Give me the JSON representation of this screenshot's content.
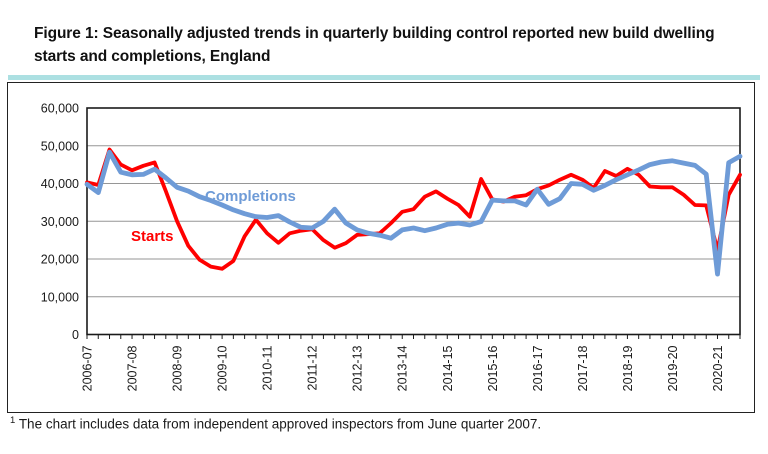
{
  "title": {
    "text": "Figure 1: Seasonally adjusted trends in quarterly building control reported new build dwelling starts and completions, England"
  },
  "footnote": {
    "marker": "1",
    "text": "The chart includes data from independent approved inspectors from June quarter 2007."
  },
  "colors": {
    "starts_line": "#FF0000",
    "completions_line": "#6E9BD7",
    "title_rule": "#ACE0E2",
    "gridline": "#969696",
    "axis": "#1A1A1A"
  },
  "chart_data": {
    "type": "line",
    "title": "",
    "xlabel": "",
    "ylabel": "",
    "grid": "horizontal",
    "legend_position": "inline-annotations",
    "x_axis": {
      "year_labels": [
        "2006-07",
        "2007-08",
        "2008-09",
        "2009-10",
        "2010-11",
        "2011-12",
        "2012-13",
        "2013-14",
        "2014-15",
        "2015-16",
        "2016-17",
        "2017-18",
        "2018-19",
        "2019-20",
        "2020-21"
      ],
      "quarters_per_year": 4,
      "total_points": 59
    },
    "y_axis": {
      "min": 0,
      "max": 60000,
      "tick_step": 10000,
      "tick_labels": [
        "0",
        "10,000",
        "20,000",
        "30,000",
        "40,000",
        "50,000",
        "60,000"
      ]
    },
    "series": [
      {
        "name": "Starts",
        "color": "#FF0000",
        "values": [
          40300,
          39600,
          49000,
          45000,
          43500,
          44700,
          45600,
          38000,
          30000,
          23500,
          19800,
          18000,
          17400,
          19500,
          26000,
          30400,
          26800,
          24300,
          26800,
          27500,
          27900,
          25000,
          23000,
          24200,
          26400,
          26600,
          26800,
          29500,
          32500,
          33200,
          36500,
          37900,
          36000,
          34300,
          31200,
          41200,
          35800,
          35200,
          36500,
          36900,
          38500,
          39500,
          41000,
          42300,
          41000,
          38800,
          43300,
          42000,
          43900,
          42300,
          39200,
          39000,
          39000,
          37000,
          34300,
          34200,
          22300,
          37000,
          42300
        ]
      },
      {
        "name": "Completions",
        "color": "#6E9BD7",
        "values": [
          39800,
          37600,
          48300,
          43000,
          42300,
          42400,
          43800,
          41500,
          39000,
          38000,
          36500,
          35500,
          34300,
          33000,
          32000,
          31200,
          31000,
          31500,
          29800,
          28400,
          28200,
          30000,
          33200,
          29500,
          27700,
          26800,
          26300,
          25500,
          27700,
          28200,
          27500,
          28200,
          29200,
          29500,
          29000,
          29900,
          35600,
          35400,
          35400,
          34300,
          38500,
          34500,
          36000,
          40000,
          39800,
          38200,
          39500,
          41000,
          42300,
          43600,
          45000,
          45700,
          46000,
          45400,
          44800,
          42500,
          16000,
          45500,
          47200
        ]
      }
    ]
  }
}
